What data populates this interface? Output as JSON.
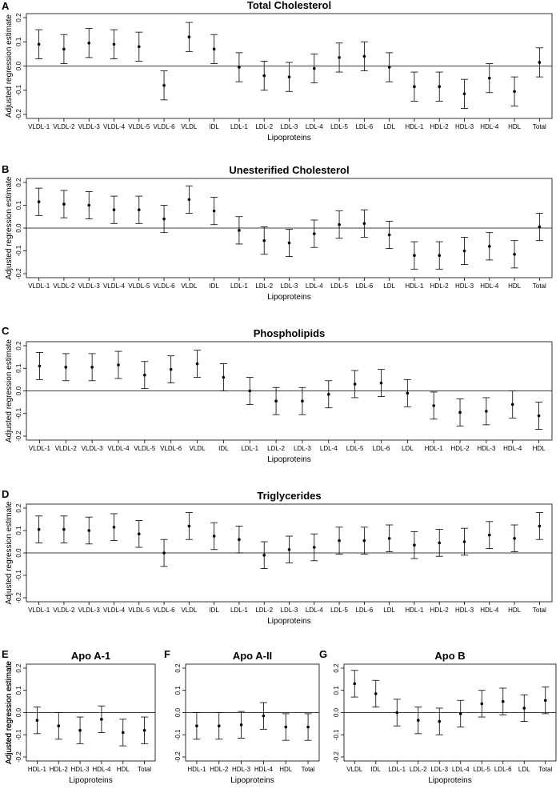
{
  "chart_data": [
    {
      "panel": "A",
      "type": "errorbar",
      "title": "Total Cholesterol",
      "xlabel": "Lipoproteins",
      "ylabel": "Adjusted regression estimate",
      "ylim": [
        -0.2,
        0.2
      ],
      "yticks": [
        "-0.2",
        "-0.1",
        "0.0",
        "0.1",
        "0.2"
      ],
      "reference_line": 0,
      "categories": [
        "VLDL-1",
        "VLDL-2",
        "VLDL-3",
        "VLDL-4",
        "VLDL-5",
        "VLDL-6",
        "VLDL",
        "IDL",
        "LDL-1",
        "LDL-2",
        "LDL-3",
        "LDL-4",
        "LDL-5",
        "LDL-6",
        "LDL",
        "HDL-1",
        "HDL-2",
        "HDL-3",
        "HDL-4",
        "HDL",
        "Total"
      ],
      "estimates": [
        0.09,
        0.07,
        0.095,
        0.09,
        0.08,
        -0.08,
        0.12,
        0.07,
        -0.005,
        -0.04,
        -0.045,
        -0.01,
        0.035,
        0.04,
        -0.005,
        -0.085,
        -0.085,
        -0.115,
        -0.05,
        -0.105,
        0.015
      ],
      "lower": [
        0.03,
        0.01,
        0.035,
        0.03,
        0.02,
        -0.14,
        0.06,
        0.01,
        -0.065,
        -0.1,
        -0.105,
        -0.07,
        -0.025,
        -0.02,
        -0.065,
        -0.145,
        -0.145,
        -0.175,
        -0.11,
        -0.165,
        -0.045
      ],
      "upper": [
        0.15,
        0.13,
        0.155,
        0.15,
        0.14,
        -0.02,
        0.18,
        0.13,
        0.055,
        0.02,
        0.015,
        0.05,
        0.095,
        0.1,
        0.055,
        -0.025,
        -0.025,
        -0.055,
        0.01,
        -0.045,
        0.075
      ]
    },
    {
      "panel": "B",
      "type": "errorbar",
      "title": "Unesterified Cholesterol",
      "xlabel": "Lipoproteins",
      "ylabel": "Adjusted regression estimate",
      "ylim": [
        -0.2,
        0.2
      ],
      "yticks": [
        "-0.2",
        "-0.1",
        "0.0",
        "0.1",
        "0.2"
      ],
      "reference_line": 0,
      "categories": [
        "VLDL-1",
        "VLDL-2",
        "VLDL-3",
        "VLDL-4",
        "VLDL-5",
        "VLDL-6",
        "VLDL",
        "IDL",
        "LDL-1",
        "LDL-2",
        "LDL-3",
        "LDL-4",
        "LDL-5",
        "LDL-6",
        "LDL",
        "HDL-1",
        "HDL-2",
        "HDL-3",
        "HDL-4",
        "HDL",
        "Total"
      ],
      "estimates": [
        0.115,
        0.105,
        0.1,
        0.08,
        0.08,
        0.04,
        0.125,
        0.075,
        -0.01,
        -0.055,
        -0.065,
        -0.025,
        0.015,
        0.02,
        -0.03,
        -0.12,
        -0.12,
        -0.1,
        -0.08,
        -0.115,
        0.005
      ],
      "lower": [
        0.055,
        0.045,
        0.04,
        0.02,
        0.02,
        -0.02,
        0.065,
        0.015,
        -0.07,
        -0.115,
        -0.125,
        -0.085,
        -0.045,
        -0.04,
        -0.09,
        -0.18,
        -0.18,
        -0.16,
        -0.14,
        -0.175,
        -0.055
      ],
      "upper": [
        0.175,
        0.165,
        0.16,
        0.14,
        0.14,
        0.1,
        0.185,
        0.135,
        0.05,
        0.005,
        -0.005,
        0.035,
        0.075,
        0.08,
        0.03,
        -0.06,
        -0.06,
        -0.04,
        -0.02,
        -0.055,
        0.065
      ]
    },
    {
      "panel": "C",
      "type": "errorbar",
      "title": "Phospholipids",
      "xlabel": "Lipoproteins",
      "ylabel": "Adjusted regression estimate",
      "ylim": [
        -0.2,
        0.2
      ],
      "yticks": [
        "-0.2",
        "-0.1",
        "0.0",
        "0.1",
        "0.2"
      ],
      "reference_line": 0,
      "categories": [
        "VLDL-1",
        "VLDL-2",
        "VLDL-3",
        "VLDL-4",
        "VLDL-5",
        "VLDL-6",
        "VLDL",
        "IDL",
        "LDL-1",
        "LDL-2",
        "LDL-3",
        "LDL-4",
        "LDL-5",
        "LDL-6",
        "LDL",
        "HDL-1",
        "HDL-2",
        "HDL-3",
        "HDL-4",
        "HDL"
      ],
      "estimates": [
        0.11,
        0.105,
        0.105,
        0.115,
        0.07,
        0.095,
        0.12,
        0.06,
        0.0,
        -0.045,
        -0.045,
        -0.015,
        0.03,
        0.035,
        -0.01,
        -0.065,
        -0.095,
        -0.09,
        -0.06,
        -0.11
      ],
      "lower": [
        0.05,
        0.045,
        0.045,
        0.055,
        0.01,
        0.035,
        0.06,
        0.0,
        -0.06,
        -0.105,
        -0.105,
        -0.075,
        -0.03,
        -0.025,
        -0.07,
        -0.125,
        -0.155,
        -0.15,
        -0.12,
        -0.17
      ],
      "upper": [
        0.17,
        0.165,
        0.165,
        0.175,
        0.13,
        0.155,
        0.18,
        0.12,
        0.06,
        0.015,
        0.015,
        0.045,
        0.09,
        0.095,
        0.05,
        -0.005,
        -0.035,
        -0.03,
        0.0,
        -0.05
      ]
    },
    {
      "panel": "D",
      "type": "errorbar",
      "title": "Triglycerides",
      "xlabel": "Lipoproteins",
      "ylabel": "Adjusted regression estimate",
      "ylim": [
        -0.2,
        0.2
      ],
      "yticks": [
        "-0.2",
        "-0.1",
        "0.0",
        "0.1",
        "0.2"
      ],
      "reference_line": 0,
      "categories": [
        "VLDL-1",
        "VLDL-2",
        "VLDL-3",
        "VLDL-4",
        "VLDL-5",
        "VLDL-6",
        "VLDL",
        "IDL",
        "LDL-1",
        "LDL-2",
        "LDL-3",
        "LDL-4",
        "LDL-5",
        "LDL-6",
        "LDL",
        "HDL-1",
        "HDL-2",
        "HDL-3",
        "HDL-4",
        "HDL",
        "Total"
      ],
      "estimates": [
        0.105,
        0.105,
        0.1,
        0.115,
        0.085,
        0.0,
        0.12,
        0.075,
        0.06,
        -0.01,
        0.015,
        0.025,
        0.055,
        0.055,
        0.065,
        0.035,
        0.045,
        0.05,
        0.08,
        0.065,
        0.12
      ],
      "lower": [
        0.045,
        0.045,
        0.04,
        0.055,
        0.025,
        -0.06,
        0.06,
        0.015,
        0.0,
        -0.07,
        -0.045,
        -0.035,
        -0.005,
        -0.005,
        0.005,
        -0.025,
        -0.015,
        -0.01,
        0.02,
        0.005,
        0.06
      ],
      "upper": [
        0.165,
        0.165,
        0.16,
        0.175,
        0.145,
        0.06,
        0.18,
        0.135,
        0.12,
        0.05,
        0.075,
        0.085,
        0.115,
        0.115,
        0.125,
        0.095,
        0.105,
        0.11,
        0.14,
        0.125,
        0.18
      ]
    },
    {
      "panel": "E",
      "type": "errorbar",
      "title": "Apo A-1",
      "xlabel": "Lipoproteins",
      "ylabel": "Adjusted regression estimate",
      "ylim": [
        -0.2,
        0.2
      ],
      "yticks": [
        "-0.2",
        "-0.1",
        "0.0",
        "0.1",
        "0.2"
      ],
      "reference_line": 0,
      "categories": [
        "HDL-1",
        "HDL-2",
        "HDL-3",
        "HDL-4",
        "HDL",
        "Total"
      ],
      "estimates": [
        -0.035,
        -0.06,
        -0.08,
        -0.03,
        -0.09,
        -0.08
      ],
      "lower": [
        -0.095,
        -0.12,
        -0.14,
        -0.09,
        -0.15,
        -0.14
      ],
      "upper": [
        0.025,
        0.0,
        -0.02,
        0.03,
        -0.03,
        -0.02
      ]
    },
    {
      "panel": "F",
      "type": "errorbar",
      "title": "Apo A-II",
      "xlabel": "Lipoproteins",
      "ylabel": "Adjusted regression estimate",
      "ylim": [
        -0.2,
        0.2
      ],
      "yticks": [
        "-0.2",
        "-0.1",
        "0.0",
        "0.1",
        "0.2"
      ],
      "reference_line": 0,
      "categories": [
        "HDL-1",
        "HDL-2",
        "HDL-3",
        "HDL-4",
        "HDL",
        "Total"
      ],
      "estimates": [
        -0.06,
        -0.06,
        -0.055,
        -0.015,
        -0.065,
        -0.065
      ],
      "lower": [
        -0.12,
        -0.12,
        -0.115,
        -0.075,
        -0.125,
        -0.125
      ],
      "upper": [
        0.0,
        0.0,
        0.005,
        0.045,
        -0.005,
        -0.005
      ]
    },
    {
      "panel": "G",
      "type": "errorbar",
      "title": "Apo B",
      "xlabel": "Lipoproteins",
      "ylabel": "Adjusted regression estimate",
      "ylim": [
        -0.2,
        0.2
      ],
      "yticks": [
        "-0.2",
        "-0.1",
        "0.0",
        "0.1",
        "0.2"
      ],
      "reference_line": 0,
      "categories": [
        "VLDL",
        "IDL",
        "LDL-1",
        "LDL-2",
        "LDL-3",
        "LDL-4",
        "LDL-5",
        "LDL-6",
        "LDL",
        "Total"
      ],
      "estimates": [
        0.13,
        0.085,
        0.0,
        -0.035,
        -0.04,
        -0.005,
        0.04,
        0.05,
        0.02,
        0.055
      ],
      "lower": [
        0.07,
        0.025,
        -0.06,
        -0.095,
        -0.1,
        -0.065,
        -0.02,
        -0.01,
        -0.04,
        -0.005
      ],
      "upper": [
        0.19,
        0.145,
        0.06,
        0.025,
        0.02,
        0.055,
        0.1,
        0.11,
        0.08,
        0.115
      ]
    }
  ]
}
